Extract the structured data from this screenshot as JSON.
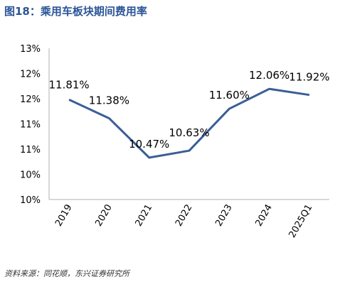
{
  "title": "图18：乘用车板块期间费用率",
  "source": "资料来源：同花顺，东兴证券研究所",
  "colors": {
    "title": "#2b5597",
    "line": "#3b5e95",
    "axis": "#b0b0b0"
  },
  "chart_data": {
    "type": "line",
    "categories": [
      "2019",
      "2020",
      "2021",
      "2022",
      "2023",
      "2024",
      "2025Q1"
    ],
    "series": [
      {
        "values": [
          11.81,
          11.38,
          10.47,
          10.63,
          11.6,
          12.06,
          11.92
        ]
      }
    ],
    "data_labels": [
      "11.81%",
      "11.38%",
      "10.47%",
      "10.63%",
      "11.60%",
      "12.06%",
      "11.92%"
    ],
    "y_tick_labels": [
      "10%",
      "10%",
      "11%",
      "11%",
      "12%",
      "12%",
      "13%"
    ],
    "ylim": [
      9.5,
      13.0
    ],
    "grid": false,
    "legend": "none"
  }
}
